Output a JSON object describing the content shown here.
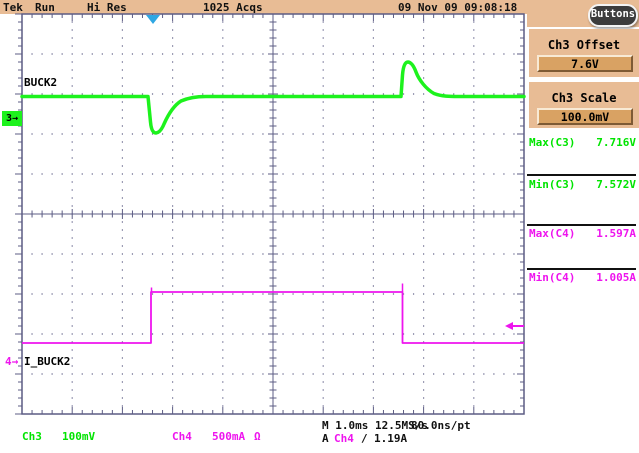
{
  "header": {
    "brand": "Tek",
    "run_status": "Run",
    "acquisition_mode": "Hi Res",
    "acquisitions": "1025 Acqs",
    "datetime": "09 Nov 09 09:08:18",
    "buttons_label": "Buttons"
  },
  "sidebar": {
    "panels": [
      {
        "title": "Ch3 Offset",
        "value": "7.6V"
      },
      {
        "title": "Ch3 Scale",
        "value": "100.0mV"
      }
    ],
    "measurements": [
      {
        "label": "Max(C3)",
        "value": "7.716V"
      },
      {
        "label": "Min(C3)",
        "value": "7.572V"
      },
      {
        "label": "Max(C4)",
        "value": "1.597A"
      },
      {
        "label": "Min(C4)",
        "value": "1.005A"
      }
    ]
  },
  "scope": {
    "ch3_label": "BUCK2",
    "ch4_label": "I_BUCK2",
    "ch3_marker": "3→",
    "ch4_marker": "4→",
    "colors": {
      "ch3": "#1df21d",
      "ch4": "#ee14ee",
      "grid": "#5c5c84",
      "trigger": "#2fa7e3"
    }
  },
  "footer": {
    "ch3_name": "Ch3",
    "ch3_scale": "100mV",
    "ch4_name": "Ch4",
    "ch4_scale": "500mA",
    "ch4_coupling": "Ω",
    "timebase": "M 1.0ms 12.5MS/s",
    "resolution": "80.0ns/pt",
    "trigger_prefix": "A",
    "trigger_source": "Ch4",
    "trigger_slope": "/",
    "trigger_level": "1.19A"
  },
  "chart_data": {
    "type": "line",
    "timebase_per_div": "1.0ms",
    "x_divisions": 10,
    "y_divisions": 10,
    "series": [
      {
        "name": "BUCK2 (Ch3)",
        "scale_per_div": "100mV",
        "offset": "7.6V",
        "max": "7.716V",
        "min": "7.572V",
        "shape": "flat line with downward transient dip at load step-on (~2.6 div) and upward overshoot at load step-off (~7.6 div)"
      },
      {
        "name": "I_BUCK2 (Ch4)",
        "scale_per_div": "500mA",
        "max": "1.597A",
        "min": "1.005A",
        "shape": "current square step: low ~1.0A, rises at ~2.6 div to ~1.6A, falls back at ~7.6 div",
        "trigger_level": "1.19A"
      }
    ]
  }
}
